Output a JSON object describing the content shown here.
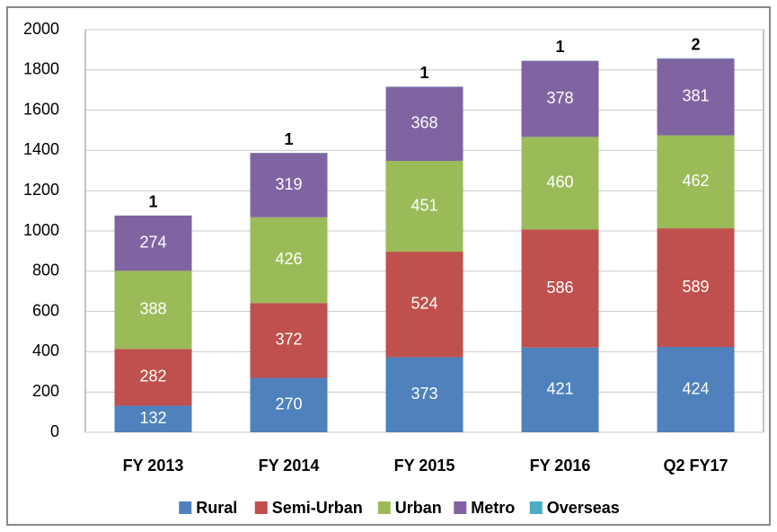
{
  "chart_data": {
    "type": "stacked_bar",
    "categories": [
      "FY 2013",
      "FY 2014",
      "FY 2015",
      "FY 2016",
      "Q2 FY17"
    ],
    "series": [
      {
        "name": "Rural",
        "color": "#4f81bd",
        "values": [
          132,
          270,
          373,
          421,
          424
        ]
      },
      {
        "name": "Semi-Urban",
        "color": "#c0504d",
        "values": [
          282,
          372,
          524,
          586,
          589
        ]
      },
      {
        "name": "Urban",
        "color": "#9bbb59",
        "values": [
          388,
          426,
          451,
          460,
          462
        ]
      },
      {
        "name": "Metro",
        "color": "#8064a2",
        "values": [
          274,
          319,
          368,
          378,
          381
        ]
      },
      {
        "name": "Overseas",
        "color": "#4bacc6",
        "values": [
          1,
          1,
          1,
          1,
          2
        ]
      }
    ],
    "ylim": [
      0,
      2000
    ],
    "yticks": [
      0,
      200,
      400,
      600,
      800,
      1000,
      1200,
      1400,
      1600,
      1800,
      2000
    ],
    "grid": true,
    "legend": "bottom"
  }
}
